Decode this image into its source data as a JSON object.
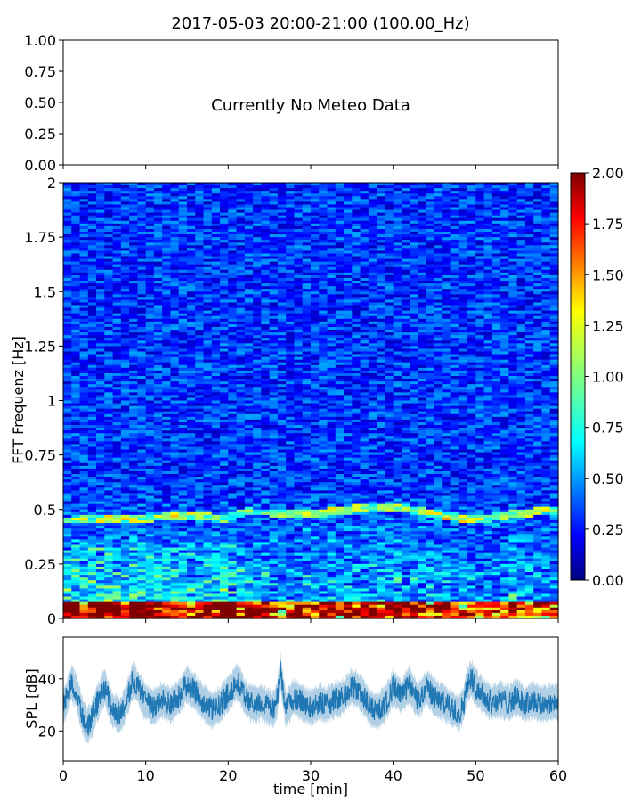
{
  "figure": {
    "title": "2017-05-03 20:00-21:00 (100.00_Hz)"
  },
  "chart_data": [
    {
      "type": "line",
      "panel": "meteo",
      "annotation": "Currently No Meteo Data",
      "xlim": [
        0,
        60
      ],
      "ylim": [
        0,
        1
      ],
      "yticks": [
        "0.00",
        "0.25",
        "0.50",
        "0.75",
        "1.00"
      ],
      "series": []
    },
    {
      "type": "heatmap",
      "panel": "spectrogram",
      "ylabel": "FFT Frequenz [Hz]",
      "xlim": [
        0,
        60
      ],
      "ylim": [
        0,
        2
      ],
      "yticks": [
        "0",
        "0.25",
        "0.5",
        "0.75",
        "1",
        "1.25",
        "1.5",
        "1.75",
        "2"
      ],
      "colormap": "jet",
      "colorbar": {
        "range": [
          0,
          2
        ],
        "ticks": [
          "0.00",
          "0.25",
          "0.50",
          "0.75",
          "1.00",
          "1.25",
          "1.50",
          "1.75",
          "2.00"
        ]
      },
      "features": {
        "background_level": 0.35,
        "low_freq_band_hz": [
          0,
          0.08
        ],
        "low_freq_level": 1.7,
        "ridge_hz_vs_time": [
          [
            0,
            0.45
          ],
          [
            10,
            0.46
          ],
          [
            15,
            0.47
          ],
          [
            20,
            0.46
          ],
          [
            22,
            0.49
          ],
          [
            30,
            0.48
          ],
          [
            35,
            0.5
          ],
          [
            40,
            0.51
          ],
          [
            45,
            0.48
          ],
          [
            50,
            0.45
          ],
          [
            55,
            0.48
          ],
          [
            60,
            0.5
          ]
        ]
      }
    },
    {
      "type": "line",
      "panel": "spl",
      "xlabel": "time [min]",
      "ylabel": "SPL [dB]",
      "xlim": [
        0,
        60
      ],
      "ylim": [
        8.5,
        56
      ],
      "xticks": [
        "0",
        "10",
        "20",
        "30",
        "40",
        "50",
        "60"
      ],
      "yticks": [
        "20",
        "40"
      ],
      "color": "#1f77b4",
      "series": [
        {
          "x": [
            0,
            0.5,
            1,
            1.5,
            2,
            2.5,
            3,
            3.5,
            4,
            5,
            6,
            7,
            8,
            8.5,
            9,
            10,
            11,
            12,
            13,
            14,
            15,
            16,
            17,
            18,
            19,
            20,
            21,
            21.5,
            22,
            23,
            24,
            25,
            25.5,
            26,
            26.3,
            26.7,
            27,
            28,
            29,
            30,
            31,
            32,
            33,
            34,
            35,
            36,
            37,
            38,
            39,
            40,
            41,
            42,
            43,
            44,
            45,
            46,
            47,
            48,
            48.5,
            49,
            49.5,
            50,
            51,
            52,
            53,
            54,
            55,
            56,
            57,
            58,
            59,
            60
          ],
          "values": [
            28,
            34,
            38,
            36,
            30,
            24,
            22,
            25,
            30,
            37,
            28,
            26,
            35,
            40,
            37,
            31,
            29,
            32,
            30,
            33,
            38,
            35,
            31,
            28,
            30,
            34,
            39,
            37,
            33,
            30,
            31,
            29,
            28,
            33,
            44,
            35,
            28,
            33,
            31,
            29,
            31,
            30,
            32,
            33,
            37,
            35,
            30,
            27,
            30,
            37,
            33,
            38,
            31,
            37,
            33,
            31,
            29,
            27,
            30,
            38,
            40,
            37,
            33,
            31,
            32,
            31,
            33,
            30,
            32,
            30,
            31,
            31
          ]
        }
      ]
    }
  ]
}
